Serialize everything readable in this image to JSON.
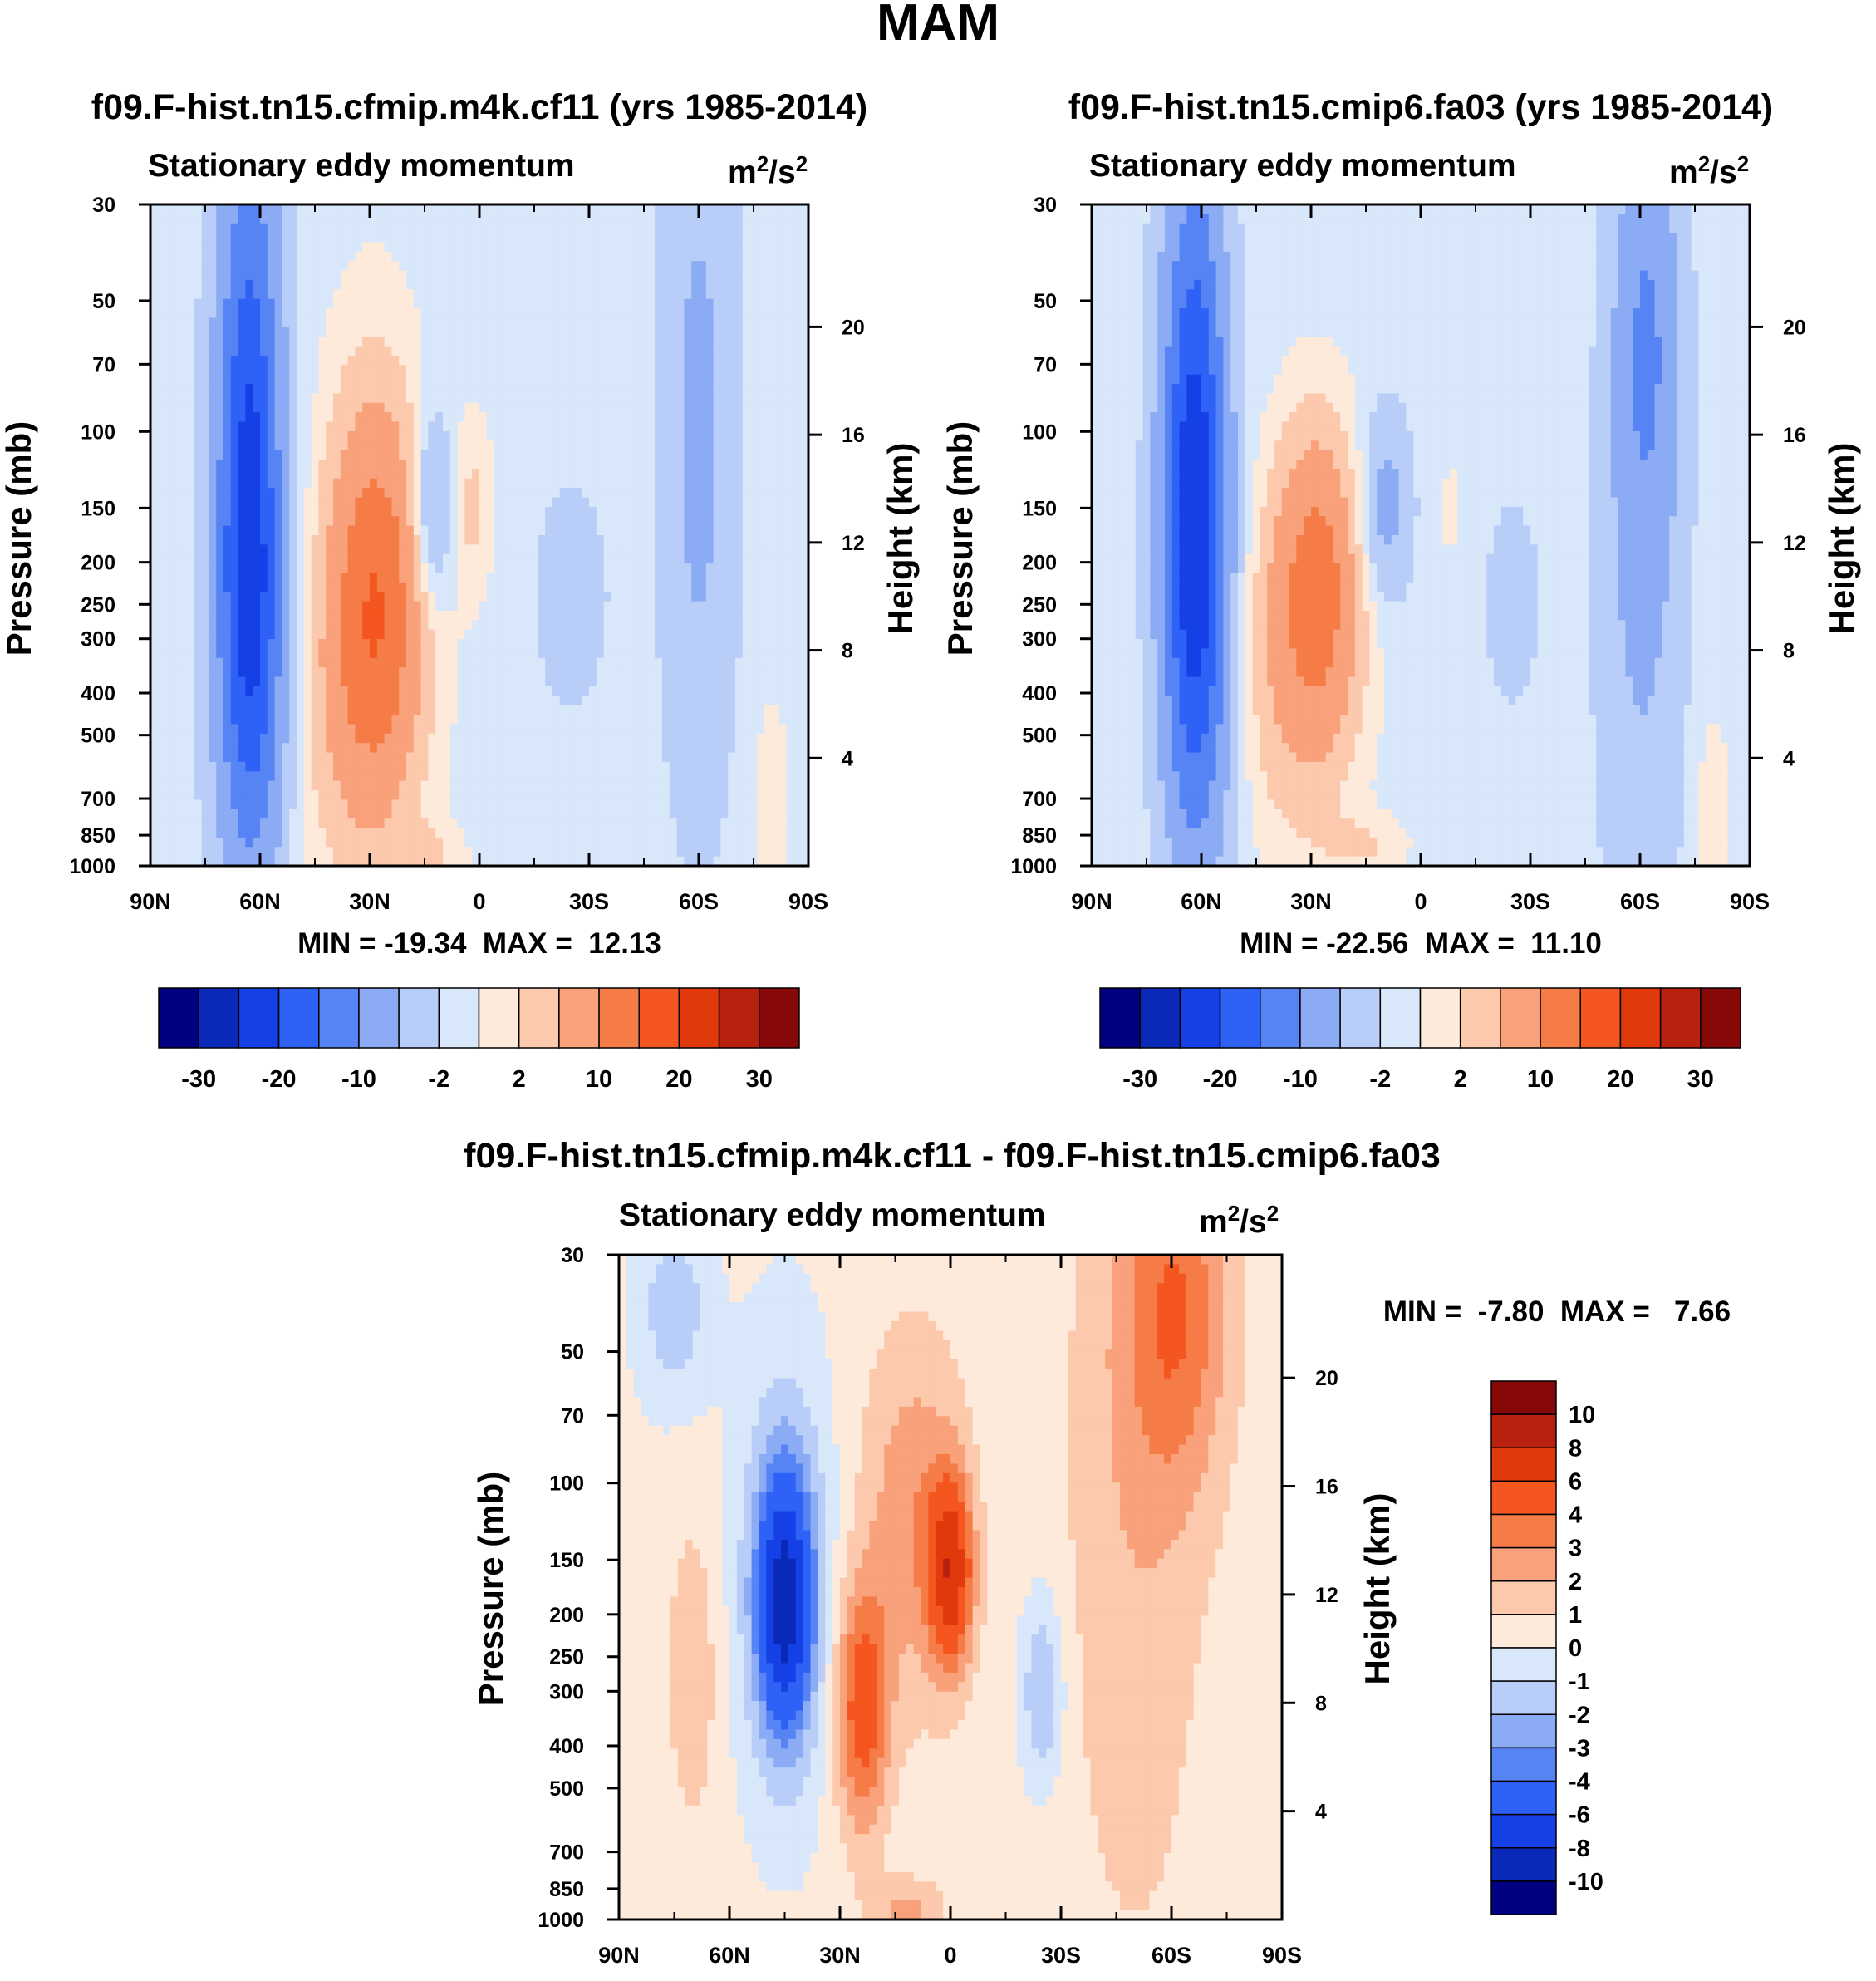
{
  "figure_title": "MAM",
  "colors": {
    "neg": [
      "#000080",
      "#0a29b8",
      "#1440e6",
      "#2e62f7",
      "#5784f5",
      "#8cabf5",
      "#b8cdf8",
      "#d8e7fa"
    ],
    "pos": [
      "#fdeadb",
      "#fcc9ad",
      "#f8a17a",
      "#f57b47",
      "#f5561f",
      "#e03a0c",
      "#b7210e",
      "#870808"
    ]
  },
  "chart_data": [
    {
      "type": "contour",
      "id": "panel1",
      "title": "f09.F-hist.tn15.cfmip.m4k.cf11 (yrs 1985-2014)",
      "subtitle": "Stationary eddy momentum",
      "units": "m2/s2",
      "units_text": {
        "base": "m",
        "exp1": "2",
        "mid": "/s",
        "exp2": "2"
      },
      "ylabel": "Pressure (mb)",
      "ylabel_right": "Height (km)",
      "x_ticks": [
        "90N",
        "60N",
        "30N",
        "0",
        "30S",
        "60S",
        "90S"
      ],
      "x_values": [
        90,
        60,
        30,
        0,
        -30,
        -60,
        -90
      ],
      "pressure_ticks": [
        30,
        50,
        70,
        100,
        150,
        200,
        250,
        300,
        400,
        500,
        700,
        850,
        1000
      ],
      "height_ticks": [
        4,
        8,
        12,
        16,
        20
      ],
      "stats": "MIN = -19.34  MAX =  12.13",
      "min": -19.34,
      "max": 12.13,
      "colorbar_labels": [
        "-30",
        "-20",
        "-10",
        "-2",
        "2",
        "10",
        "20",
        "30"
      ],
      "colorbar_levels": [
        -30,
        -25,
        -20,
        -15,
        -10,
        -5,
        -2,
        0,
        2,
        5,
        10,
        15,
        20,
        25,
        30
      ],
      "features": [
        {
          "lat": 63,
          "p": 120,
          "value": -18.5,
          "lat_width": 6,
          "logp_width": 0.55
        },
        {
          "lat": 62,
          "p": 350,
          "value": -8,
          "lat_width": 7,
          "logp_width": 0.35
        },
        {
          "lat": 28,
          "p": 240,
          "value": 12,
          "lat_width": 9,
          "logp_width": 0.3
        },
        {
          "lat": 33,
          "p": 450,
          "value": 5,
          "lat_width": 12,
          "logp_width": 0.3
        },
        {
          "lat": 13,
          "p": 150,
          "value": -7,
          "lat_width": 4,
          "logp_width": 0.15
        },
        {
          "lat": 2,
          "p": 150,
          "value": 3.5,
          "lat_width": 4,
          "logp_width": 0.15
        },
        {
          "lat": -25,
          "p": 240,
          "value": -4,
          "lat_width": 6,
          "logp_width": 0.15
        },
        {
          "lat": -60,
          "p": 100,
          "value": -5,
          "lat_width": 7,
          "logp_width": 0.6
        },
        {
          "lat": -80,
          "p": 700,
          "value": 3,
          "lat_width": 3,
          "logp_width": 0.15
        },
        {
          "lat": 15,
          "p": 950,
          "value": 3,
          "lat_width": 8,
          "logp_width": 0.05
        },
        {
          "lat": 30,
          "p": 120,
          "value": 2,
          "lat_width": 10,
          "logp_width": 0.35
        }
      ],
      "background": -1
    },
    {
      "type": "contour",
      "id": "panel2",
      "title": "f09.F-hist.tn15.cmip6.fa03 (yrs 1985-2014)",
      "subtitle": "Stationary eddy momentum",
      "units": "m2/s2",
      "units_text": {
        "base": "m",
        "exp1": "2",
        "mid": "/s",
        "exp2": "2"
      },
      "ylabel": "Pressure (mb)",
      "ylabel_right": "Height (km)",
      "x_ticks": [
        "90N",
        "60N",
        "30N",
        "0",
        "30S",
        "60S",
        "90S"
      ],
      "x_values": [
        90,
        60,
        30,
        0,
        -30,
        -60,
        -90
      ],
      "pressure_ticks": [
        30,
        50,
        70,
        100,
        150,
        200,
        250,
        300,
        400,
        500,
        700,
        850,
        1000
      ],
      "height_ticks": [
        4,
        8,
        12,
        16,
        20
      ],
      "stats": "MIN = -22.56  MAX =  11.10",
      "min": -22.56,
      "max": 11.1,
      "colorbar_labels": [
        "-30",
        "-20",
        "-10",
        "-2",
        "2",
        "10",
        "20",
        "30"
      ],
      "colorbar_levels": [
        -30,
        -25,
        -20,
        -15,
        -10,
        -5,
        -2,
        0,
        2,
        5,
        10,
        15,
        20,
        25,
        30
      ],
      "features": [
        {
          "lat": 62,
          "p": 130,
          "value": -21,
          "lat_width": 6,
          "logp_width": 0.5
        },
        {
          "lat": 60,
          "p": 350,
          "value": -6,
          "lat_width": 7,
          "logp_width": 0.35
        },
        {
          "lat": 28,
          "p": 220,
          "value": 11,
          "lat_width": 8,
          "logp_width": 0.25
        },
        {
          "lat": 35,
          "p": 350,
          "value": 5,
          "lat_width": 12,
          "logp_width": 0.3
        },
        {
          "lat": 10,
          "p": 150,
          "value": -6,
          "lat_width": 5,
          "logp_width": 0.15
        },
        {
          "lat": -25,
          "p": 250,
          "value": -3,
          "lat_width": 5,
          "logp_width": 0.15
        },
        {
          "lat": -62,
          "p": 60,
          "value": -8,
          "lat_width": 6,
          "logp_width": 0.35
        },
        {
          "lat": -60,
          "p": 250,
          "value": -4,
          "lat_width": 8,
          "logp_width": 0.6
        },
        {
          "lat": -80,
          "p": 750,
          "value": 3,
          "lat_width": 3,
          "logp_width": 0.15
        },
        {
          "lat": -8,
          "p": 150,
          "value": 1.2,
          "lat_width": 4,
          "logp_width": 0.15
        },
        {
          "lat": 15,
          "p": 900,
          "value": 3,
          "lat_width": 8,
          "logp_width": 0.05
        }
      ],
      "background": -1
    },
    {
      "type": "contour",
      "id": "panel3",
      "title": "f09.F-hist.tn15.cfmip.m4k.cf11 - f09.F-hist.tn15.cmip6.fa03",
      "subtitle": "Stationary eddy momentum",
      "units": "m2/s2",
      "units_text": {
        "base": "m",
        "exp1": "2",
        "mid": "/s",
        "exp2": "2"
      },
      "ylabel": "Pressure (mb)",
      "ylabel_right": "Height (km)",
      "x_ticks": [
        "90N",
        "60N",
        "30N",
        "0",
        "30S",
        "60S",
        "90S"
      ],
      "x_values": [
        90,
        60,
        30,
        0,
        -30,
        -60,
        -90
      ],
      "pressure_ticks": [
        30,
        50,
        70,
        100,
        150,
        200,
        250,
        300,
        400,
        500,
        700,
        850,
        1000
      ],
      "height_ticks": [
        4,
        8,
        12,
        16,
        20
      ],
      "stats": "MIN =  -7.80  MAX =   7.66",
      "min": -7.8,
      "max": 7.66,
      "colorbar_labels": [
        "10",
        "8",
        "6",
        "4",
        "3",
        "2",
        "1",
        "0",
        "-1",
        "-2",
        "-3",
        "-4",
        "-6",
        "-8",
        "-10"
      ],
      "colorbar_levels": [
        -10,
        -8,
        -6,
        -4,
        -3,
        -2,
        -1,
        0,
        1,
        2,
        3,
        4,
        6,
        8,
        10
      ],
      "features": [
        {
          "lat": 45,
          "p": 190,
          "value": -7.5,
          "lat_width": 5,
          "logp_width": 0.2
        },
        {
          "lat": 45,
          "p": 160,
          "value": -2.5,
          "lat_width": 9,
          "logp_width": 0.35
        },
        {
          "lat": 24,
          "p": 330,
          "value": 4.5,
          "lat_width": 5,
          "logp_width": 0.2
        },
        {
          "lat": 0,
          "p": 160,
          "value": 6.5,
          "lat_width": 4,
          "logp_width": 0.15
        },
        {
          "lat": 10,
          "p": 120,
          "value": 2.5,
          "lat_width": 10,
          "logp_width": 0.3
        },
        {
          "lat": -25,
          "p": 300,
          "value": -2.5,
          "lat_width": 4,
          "logp_width": 0.15
        },
        {
          "lat": -62,
          "p": 40,
          "value": 3,
          "lat_width": 10,
          "logp_width": 0.3
        },
        {
          "lat": -50,
          "p": 100,
          "value": 1.5,
          "lat_width": 14,
          "logp_width": 0.8
        },
        {
          "lat": 75,
          "p": 40,
          "value": -2,
          "lat_width": 7,
          "logp_width": 0.15
        },
        {
          "lat": 70,
          "p": 270,
          "value": 1.5,
          "lat_width": 5,
          "logp_width": 0.25
        },
        {
          "lat": 12,
          "p": 950,
          "value": 2,
          "lat_width": 7,
          "logp_width": 0.05
        }
      ],
      "background": 0.3
    }
  ]
}
